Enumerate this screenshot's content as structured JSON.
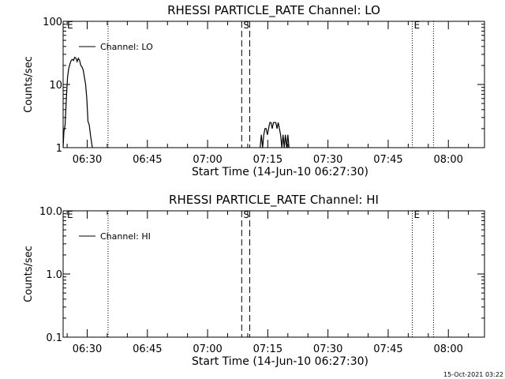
{
  "footer": {
    "timestamp": "15-Oct-2021 03:22"
  },
  "chart_data": [
    {
      "type": "line",
      "title": "RHESSI PARTICLE_RATE Channel: LO",
      "xlabel": "Start Time (14-Jun-10 06:27:30)",
      "ylabel": "Counts/sec",
      "yscale": "log",
      "ylim": [
        1,
        100
      ],
      "yticks": [
        {
          "v": 1,
          "label": "1"
        },
        {
          "v": 10,
          "label": "10"
        },
        {
          "v": 100,
          "label": "100"
        }
      ],
      "xlim_min": [
        -3.0,
        102.0
      ],
      "xticks": [
        {
          "v": 3,
          "label": "06:30"
        },
        {
          "v": 18,
          "label": "06:45"
        },
        {
          "v": 33,
          "label": "07:00"
        },
        {
          "v": 48,
          "label": "07:15"
        },
        {
          "v": 63,
          "label": "07:30"
        },
        {
          "v": 78,
          "label": "07:45"
        },
        {
          "v": 93,
          "label": "08:00"
        }
      ],
      "legend": {
        "label": "Channel: LO",
        "position": "top-left"
      },
      "markers": [
        {
          "x": -2.4,
          "label": "E",
          "style": "none"
        },
        {
          "x": 8.2,
          "label": "",
          "style": "dotted"
        },
        {
          "x": 41.5,
          "label": "S",
          "style": "dashed"
        },
        {
          "x": 43.5,
          "label": "",
          "style": "dashed"
        },
        {
          "x": 84.0,
          "label": "E",
          "style": "dotted"
        },
        {
          "x": 89.3,
          "label": "",
          "style": "dotted"
        }
      ],
      "series": [
        {
          "name": "Channel: LO",
          "segments": [
            {
              "x": [
                -3.0,
                -2.8,
                -2.5,
                -2.2,
                -1.9,
                -1.6,
                -1.3,
                -1.0,
                -0.7,
                -0.4,
                -0.1,
                0.2,
                0.5,
                0.8,
                1.1,
                1.4,
                1.7,
                2.0,
                2.3,
                2.6,
                2.9,
                3.2,
                3.5,
                3.8,
                4.1,
                4.4
              ],
              "y": [
                1.0,
                1.8,
                2.3,
                6.0,
                13.0,
                18.0,
                21.0,
                24.0,
                25.0,
                24.0,
                27.0,
                26.0,
                23.0,
                26.0,
                24.0,
                20.0,
                19.0,
                17.0,
                13.0,
                10.0,
                6.0,
                2.6,
                2.3,
                1.6,
                1.2,
                0.9
              ]
            },
            {
              "x": [
                45.8,
                46.1,
                46.4,
                46.7,
                47.0,
                47.3,
                47.6,
                47.9,
                48.2,
                48.5,
                48.8,
                49.1,
                49.4,
                49.7,
                50.0,
                50.3,
                50.6,
                50.9,
                51.2,
                51.5,
                51.8,
                52.1,
                52.4,
                52.7,
                53.0,
                53.3,
                53.6
              ],
              "y": [
                0.9,
                1.0,
                1.6,
                1.0,
                1.6,
                2.0,
                2.0,
                1.6,
                2.0,
                2.5,
                2.5,
                2.0,
                2.5,
                2.5,
                2.5,
                2.0,
                2.5,
                2.0,
                1.6,
                1.0,
                1.6,
                1.0,
                1.6,
                1.0,
                1.6,
                1.0,
                0.9
              ]
            }
          ]
        }
      ]
    },
    {
      "type": "line",
      "title": "RHESSI PARTICLE_RATE Channel: HI",
      "xlabel": "Start Time (14-Jun-10 06:27:30)",
      "ylabel": "Counts/sec",
      "yscale": "log",
      "ylim": [
        0.1,
        10
      ],
      "yticks": [
        {
          "v": 0.1,
          "label": "0.1"
        },
        {
          "v": 1,
          "label": "1.0"
        },
        {
          "v": 10,
          "label": "10.0"
        }
      ],
      "xlim_min": [
        -3.0,
        102.0
      ],
      "xticks": [
        {
          "v": 3,
          "label": "06:30"
        },
        {
          "v": 18,
          "label": "06:45"
        },
        {
          "v": 33,
          "label": "07:00"
        },
        {
          "v": 48,
          "label": "07:15"
        },
        {
          "v": 63,
          "label": "07:30"
        },
        {
          "v": 78,
          "label": "07:45"
        },
        {
          "v": 93,
          "label": "08:00"
        }
      ],
      "legend": {
        "label": "Channel: HI",
        "position": "top-left"
      },
      "markers": [
        {
          "x": -2.4,
          "label": "E",
          "style": "none"
        },
        {
          "x": 8.2,
          "label": "",
          "style": "dotted"
        },
        {
          "x": 41.5,
          "label": "S",
          "style": "dashed"
        },
        {
          "x": 43.5,
          "label": "",
          "style": "dashed"
        },
        {
          "x": 84.0,
          "label": "E",
          "style": "dotted"
        },
        {
          "x": 89.3,
          "label": "",
          "style": "dotted"
        }
      ],
      "series": [
        {
          "name": "Channel: HI",
          "segments": []
        }
      ]
    }
  ]
}
